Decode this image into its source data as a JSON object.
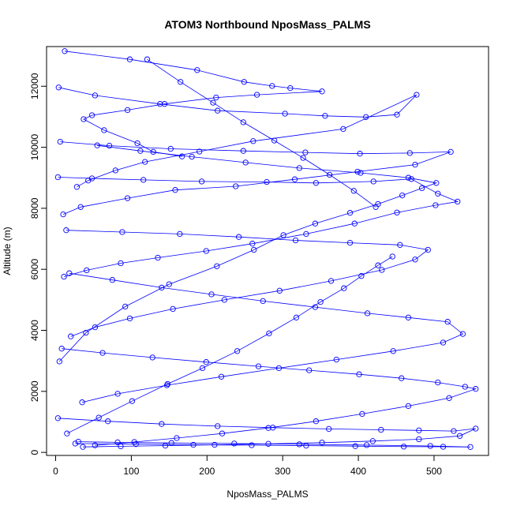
{
  "chart_data": {
    "type": "scatter",
    "title": "ATOM3 Northbound NposMass_PALMS",
    "xlabel": "NposMass_PALMS",
    "ylabel": "Altitude (m)",
    "xlim": [
      -12,
      572
    ],
    "ylim": [
      -100,
      13300
    ],
    "xticks": [
      0,
      100,
      200,
      300,
      400,
      500
    ],
    "yticks": [
      0,
      2000,
      4000,
      6000,
      8000,
      10000,
      12000
    ],
    "grid": false,
    "legend": "none",
    "marker": "open-circle",
    "connected": true,
    "series_color": "#0000ff",
    "series": [
      {
        "x": [
          12,
          98,
          187,
          249,
          286,
          310,
          352,
          266,
          212,
          144,
          95,
          48,
          37,
          64,
          108,
          129,
          167
        ],
        "y": [
          13150,
          12880,
          12530,
          12140,
          12010,
          11940,
          11830,
          11720,
          11630,
          11420,
          11220,
          11050,
          10920,
          10560,
          10130,
          9850,
          9700
        ]
      },
      {
        "x": [
          4,
          52,
          138,
          214,
          303,
          356,
          410,
          451,
          477,
          380,
          261,
          190,
          118,
          79,
          43,
          28
        ],
        "y": [
          11960,
          11700,
          11420,
          11200,
          11100,
          11030,
          10990,
          11070,
          11720,
          10600,
          10200,
          9860,
          9520,
          9240,
          8910,
          8700
        ]
      },
      {
        "x": [
          6,
          71,
          152,
          248,
          330,
          402,
          468,
          522,
          475,
          399,
          316,
          238,
          158,
          95,
          33,
          10
        ],
        "y": [
          10180,
          10050,
          9950,
          9880,
          9830,
          9790,
          9810,
          9850,
          9430,
          9200,
          8950,
          8720,
          8600,
          8330,
          8040,
          7800
        ]
      },
      {
        "x": [
          3,
          48,
          116,
          193,
          279,
          344,
          420,
          470,
          505,
          531,
          502,
          451,
          395,
          331,
          260,
          199,
          135,
          86,
          41,
          11
        ],
        "y": [
          9020,
          8980,
          8930,
          8880,
          8860,
          8830,
          8880,
          8960,
          8480,
          8220,
          8100,
          7860,
          7500,
          7160,
          6840,
          6600,
          6380,
          6200,
          5970,
          5760
        ]
      },
      {
        "x": [
          14,
          88,
          164,
          242,
          317,
          389,
          455,
          492,
          475,
          431,
          364,
          296,
          223,
          155,
          98,
          52,
          20
        ],
        "y": [
          7280,
          7220,
          7160,
          7060,
          6950,
          6870,
          6800,
          6640,
          6320,
          5980,
          5620,
          5300,
          5000,
          4700,
          4390,
          4100,
          3800
        ]
      },
      {
        "x": [
          18,
          75,
          140,
          206,
          274,
          343,
          412,
          466,
          518,
          538,
          512,
          446,
          371,
          295,
          219,
          147,
          82,
          35
        ],
        "y": [
          5870,
          5650,
          5400,
          5180,
          4960,
          4760,
          4560,
          4420,
          4280,
          3880,
          3600,
          3320,
          3040,
          2760,
          2480,
          2200,
          1920,
          1640
        ]
      },
      {
        "x": [
          8,
          62,
          128,
          199,
          268,
          335,
          401,
          457,
          505,
          541,
          555,
          520,
          466,
          405,
          344,
          281,
          220,
          160,
          104,
          52
        ],
        "y": [
          3400,
          3260,
          3110,
          2960,
          2820,
          2690,
          2560,
          2430,
          2290,
          2150,
          2080,
          1780,
          1520,
          1260,
          1020,
          800,
          620,
          470,
          340,
          230
        ]
      },
      {
        "x": [
          3,
          69,
          140,
          214,
          287,
          361,
          430,
          480,
          526,
          555,
          534,
          480,
          419,
          352,
          281,
          210,
          145,
          86,
          36
        ],
        "y": [
          1120,
          1020,
          930,
          860,
          810,
          770,
          740,
          720,
          700,
          780,
          540,
          430,
          370,
          320,
          280,
          250,
          220,
          200,
          180
        ]
      },
      {
        "x": [
          26,
          106,
          182,
          259,
          331,
          396,
          460,
          512,
          548,
          495,
          411,
          322,
          236,
          153,
          82,
          30
        ],
        "y": [
          290,
          270,
          250,
          235,
          220,
          205,
          190,
          185,
          178,
          210,
          240,
          265,
          290,
          310,
          330,
          350
        ]
      },
      {
        "x": [
          5,
          40,
          92,
          150,
          213,
          262,
          301,
          343,
          389,
          426,
          458,
          484,
          503,
          466,
          403,
          322,
          251,
          180,
          112,
          55
        ],
        "y": [
          2980,
          3920,
          4780,
          5510,
          6100,
          6640,
          7120,
          7500,
          7850,
          8140,
          8420,
          8660,
          8830,
          9000,
          9160,
          9320,
          9500,
          9690,
          9880,
          10060
        ]
      },
      {
        "x": [
          15,
          57,
          101,
          148,
          194,
          240,
          282,
          318,
          350,
          381,
          404,
          426,
          445
        ],
        "y": [
          620,
          1140,
          1680,
          2240,
          2760,
          3320,
          3900,
          4420,
          4930,
          5380,
          5780,
          6130,
          6420
        ]
      },
      {
        "x": [
          121,
          165,
          208,
          248,
          289,
          327,
          362,
          394,
          423
        ],
        "y": [
          12880,
          12140,
          11460,
          10820,
          10220,
          9650,
          9100,
          8570,
          8040
        ]
      }
    ]
  }
}
